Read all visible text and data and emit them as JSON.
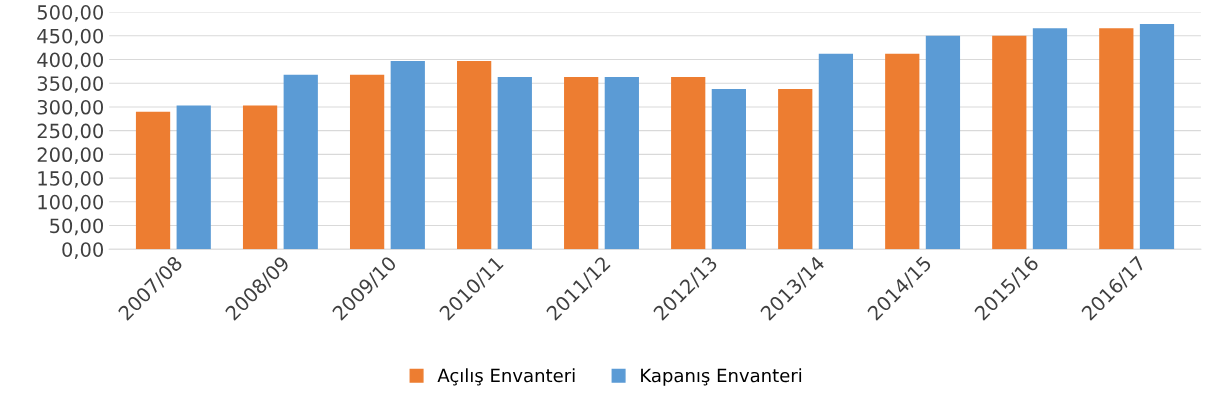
{
  "chart_data": {
    "type": "bar",
    "categories": [
      "2007/08",
      "2008/09",
      "2009/10",
      "2010/11",
      "2011/12",
      "2012/13",
      "2013/14",
      "2014/15",
      "2015/16",
      "2016/17"
    ],
    "series": [
      {
        "name": "Açılış Envanteri",
        "color": "#ed7d31",
        "values": [
          290,
          303,
          368,
          397,
          363,
          363,
          338,
          412,
          450,
          466
        ]
      },
      {
        "name": "Kapanış Envanteri",
        "color": "#5b9bd5",
        "values": [
          303,
          368,
          397,
          363,
          363,
          338,
          412,
          450,
          466,
          475
        ]
      }
    ],
    "ylim": [
      0,
      500
    ],
    "yticks": [
      {
        "value": 0,
        "label": "0,00"
      },
      {
        "value": 50,
        "label": "50,00"
      },
      {
        "value": 100,
        "label": "100,00"
      },
      {
        "value": 150,
        "label": "150,00"
      },
      {
        "value": 200,
        "label": "200,00"
      },
      {
        "value": 250,
        "label": "250,00"
      },
      {
        "value": 300,
        "label": "300,00"
      },
      {
        "value": 350,
        "label": "350,00"
      },
      {
        "value": 400,
        "label": "400,00"
      },
      {
        "value": 450,
        "label": "450,00"
      },
      {
        "value": 500,
        "label": "500,00"
      }
    ],
    "grid": "y",
    "legend": "bottom"
  }
}
